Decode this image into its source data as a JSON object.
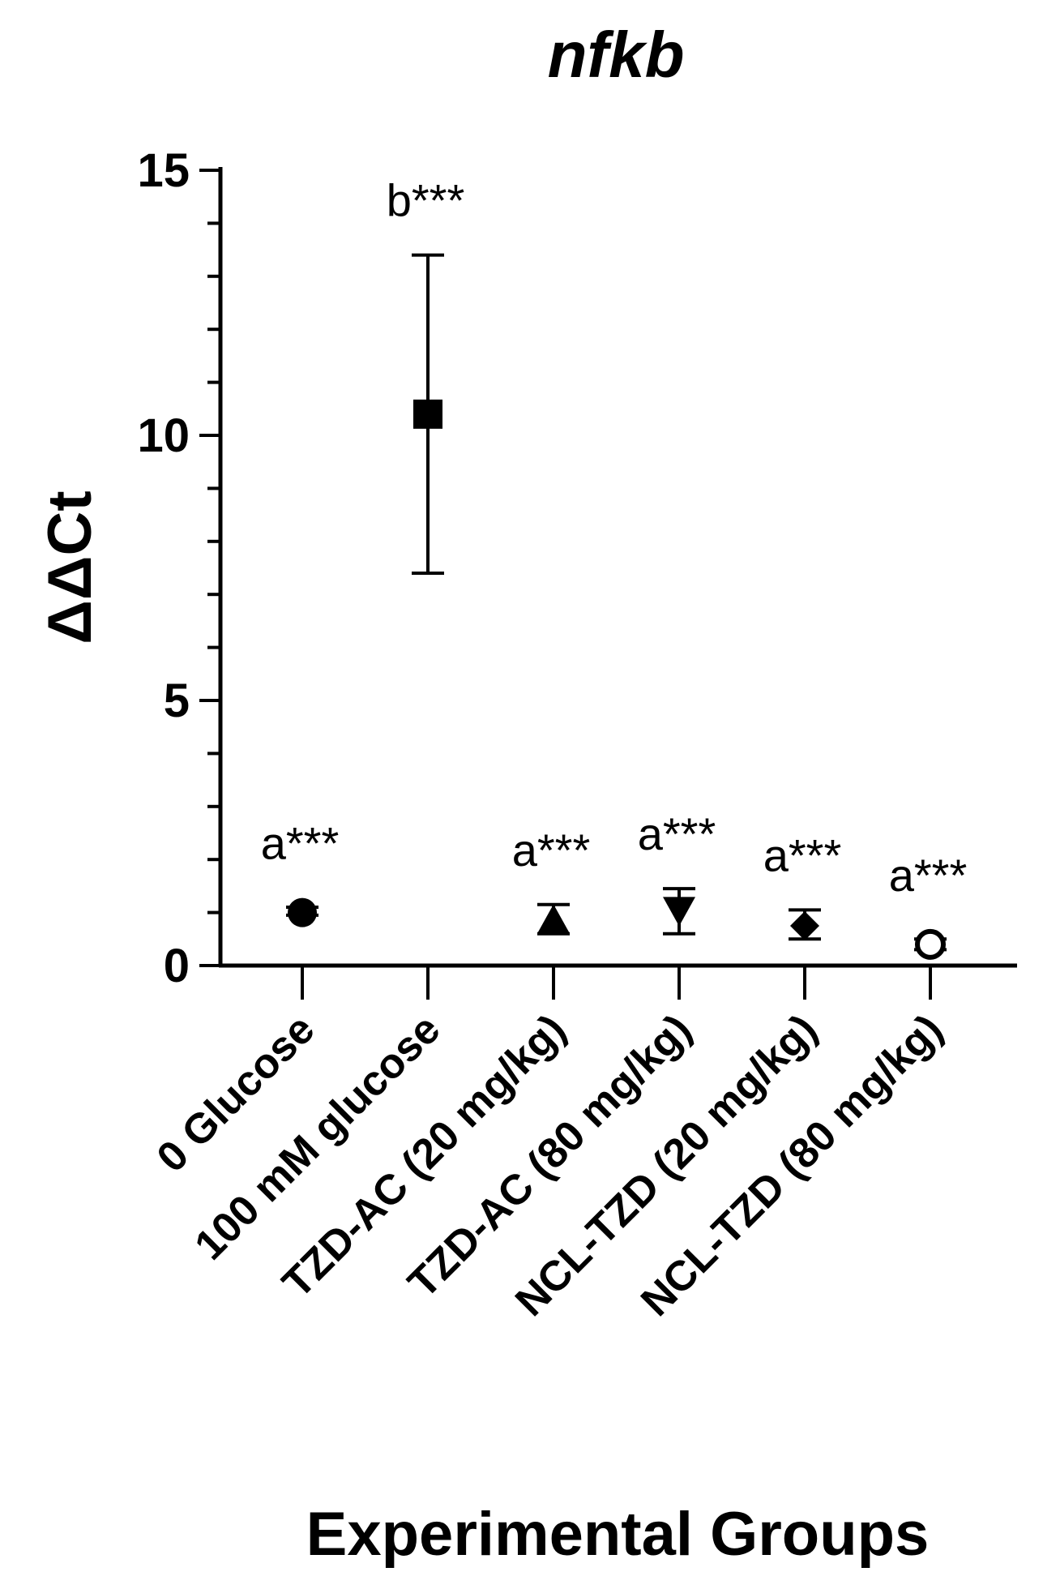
{
  "chart_data": {
    "type": "scatter",
    "title": "nfkb",
    "ylabel": "ΔΔCt",
    "xlabel": "Experimental Groups",
    "ylim": [
      0,
      15
    ],
    "yticks": [
      0,
      5,
      10,
      15
    ],
    "y_minor_step": 1,
    "grid": false,
    "legend": "none",
    "categories": [
      "0 Glucose",
      "100 mM glucose",
      "TZD-AC (20 mg/kg)",
      "TZD-AC (80 mg/kg)",
      "NCL-TZD (20 mg/kg)",
      "NCL-TZD (80 mg/kg)"
    ],
    "points": [
      {
        "category": "0 Glucose",
        "mean": 1.0,
        "err_low": 0.95,
        "err_high": 1.1,
        "marker": "circle",
        "annotation": "a***"
      },
      {
        "category": "100 mM glucose",
        "mean": 10.4,
        "err_low": 7.4,
        "err_high": 13.4,
        "marker": "square",
        "annotation": "b***"
      },
      {
        "category": "TZD-AC (20 mg/kg)",
        "mean": 0.85,
        "err_low": 0.6,
        "err_high": 1.15,
        "marker": "triangle-up",
        "annotation": "a***"
      },
      {
        "category": "TZD-AC (80 mg/kg)",
        "mean": 1.05,
        "err_low": 0.6,
        "err_high": 1.45,
        "marker": "triangle-down",
        "annotation": "a***"
      },
      {
        "category": "NCL-TZD (20 mg/kg)",
        "mean": 0.75,
        "err_low": 0.5,
        "err_high": 1.05,
        "marker": "diamond",
        "annotation": "a***"
      },
      {
        "category": "NCL-TZD (80 mg/kg)",
        "mean": 0.4,
        "err_low": 0.3,
        "err_high": 0.5,
        "marker": "open-circle",
        "annotation": "a***"
      }
    ],
    "color": "#000000"
  }
}
